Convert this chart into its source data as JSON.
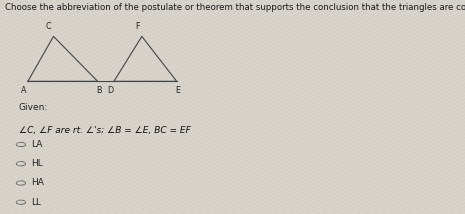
{
  "title": "Choose the abbreviation of the postulate or theorem that supports the conclusion that the triangles are congruent.",
  "given_label": "Given:",
  "given_text": "∠C, ∠F are rt. ∠'s; ∠B = ∠E, BC = EF",
  "options": [
    "LA",
    "HL",
    "HA",
    "LL"
  ],
  "bg_color": "#d8d4cc",
  "stripe_color1": "#d8d4cc",
  "stripe_color2": "#c8c4bc",
  "title_fontsize": 6.2,
  "body_fontsize": 6.5,
  "small_fontsize": 5.8,
  "tri1": {
    "A": [
      0.06,
      0.62
    ],
    "B": [
      0.21,
      0.62
    ],
    "C": [
      0.115,
      0.83
    ]
  },
  "tri2": {
    "D": [
      0.245,
      0.62
    ],
    "E": [
      0.38,
      0.62
    ],
    "F": [
      0.305,
      0.83
    ]
  },
  "lbl1": {
    "A": [
      0.052,
      0.6
    ],
    "B": [
      0.213,
      0.6
    ],
    "C": [
      0.103,
      0.855
    ]
  },
  "lbl2": {
    "D": [
      0.237,
      0.6
    ],
    "E": [
      0.383,
      0.6
    ],
    "F": [
      0.295,
      0.855
    ]
  }
}
